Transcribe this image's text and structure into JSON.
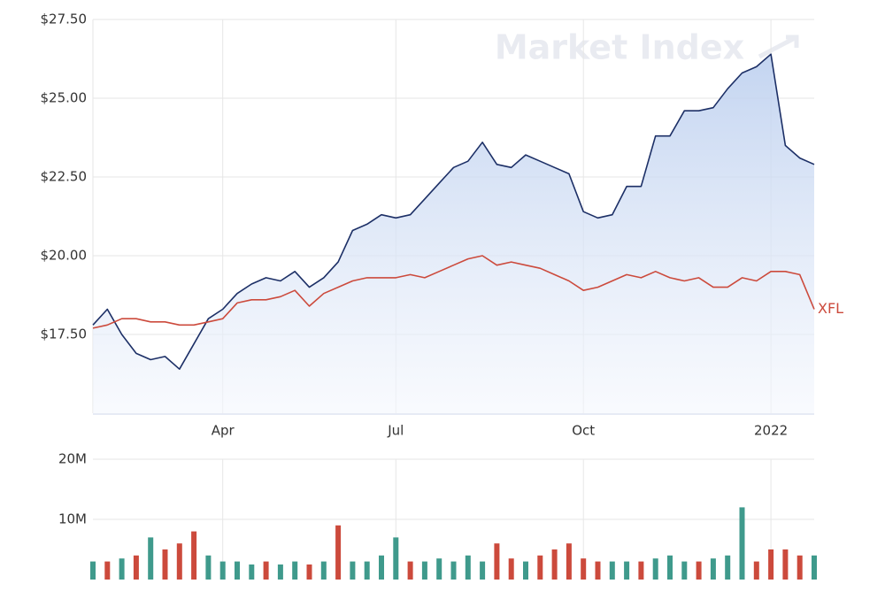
{
  "chart_data": [
    {
      "type": "line",
      "watermark": "Market Index",
      "categories": [
        null,
        null,
        null,
        null,
        null,
        null,
        null,
        null,
        null,
        "Apr",
        null,
        null,
        null,
        null,
        null,
        null,
        null,
        null,
        null,
        null,
        null,
        "Jul",
        null,
        null,
        null,
        null,
        null,
        null,
        null,
        null,
        null,
        null,
        null,
        null,
        "Oct",
        null,
        null,
        null,
        null,
        null,
        null,
        null,
        null,
        null,
        null,
        null,
        null,
        "2022",
        null,
        null,
        null
      ],
      "ylim": [
        15,
        27.5
      ],
      "yticks": [
        {
          "value": 17.5,
          "label": "$17.50"
        },
        {
          "value": 20,
          "label": "$20.00"
        },
        {
          "value": 22.5,
          "label": "$22.50"
        },
        {
          "value": 25,
          "label": "$25.00"
        },
        {
          "value": 27.5,
          "label": "$27.50"
        }
      ],
      "grid": true,
      "series": [
        {
          "color": "#1c2f66",
          "area": true,
          "values": [
            17.8,
            18.3,
            17.5,
            16.9,
            16.7,
            16.8,
            16.4,
            17.2,
            18.0,
            18.3,
            18.8,
            19.1,
            19.3,
            19.2,
            19.5,
            19.0,
            19.3,
            19.8,
            20.8,
            21.0,
            21.3,
            21.2,
            21.3,
            21.8,
            22.3,
            22.8,
            23.0,
            23.6,
            22.9,
            22.8,
            23.2,
            23.0,
            22.8,
            22.6,
            21.4,
            21.2,
            21.3,
            22.2,
            22.2,
            23.8,
            23.8,
            24.6,
            24.6,
            24.7,
            25.3,
            25.8,
            26.0,
            26.4,
            23.5,
            23.1,
            22.9
          ]
        },
        {
          "name": "XFL",
          "color": "#cc4a3c",
          "values": [
            17.7,
            17.8,
            18.0,
            18.0,
            17.9,
            17.9,
            17.8,
            17.8,
            17.9,
            18.0,
            18.5,
            18.6,
            18.6,
            18.7,
            18.9,
            18.4,
            18.8,
            19.0,
            19.2,
            19.3,
            19.3,
            19.3,
            19.4,
            19.3,
            19.5,
            19.7,
            19.9,
            20.0,
            19.7,
            19.8,
            19.7,
            19.6,
            19.4,
            19.2,
            18.9,
            19.0,
            19.2,
            19.4,
            19.3,
            19.5,
            19.3,
            19.2,
            19.3,
            19.0,
            19.0,
            19.3,
            19.2,
            19.5,
            19.5,
            19.4,
            18.3
          ]
        }
      ]
    },
    {
      "type": "bar",
      "ylim": [
        0,
        20000000
      ],
      "yticks": [
        {
          "value": 10000000,
          "label": "10M"
        },
        {
          "value": 20000000,
          "label": "20M"
        }
      ],
      "values": [
        3000000,
        3000000,
        3500000,
        4000000,
        7000000,
        5000000,
        6000000,
        8000000,
        4000000,
        3000000,
        3000000,
        2500000,
        3000000,
        2500000,
        3000000,
        2500000,
        3000000,
        9000000,
        3000000,
        3000000,
        4000000,
        7000000,
        3000000,
        3000000,
        3500000,
        3000000,
        4000000,
        3000000,
        6000000,
        3500000,
        3000000,
        4000000,
        5000000,
        6000000,
        3500000,
        3000000,
        3000000,
        3000000,
        3000000,
        3500000,
        4000000,
        3000000,
        3000000,
        3500000,
        4000000,
        12000000,
        3000000,
        5000000,
        5000000,
        4000000,
        4000000
      ],
      "colors": [
        "#3f9a8c",
        "#cc4a3c",
        "#3f9a8c",
        "#cc4a3c",
        "#3f9a8c",
        "#cc4a3c",
        "#cc4a3c",
        "#cc4a3c",
        "#3f9a8c",
        "#3f9a8c",
        "#3f9a8c",
        "#3f9a8c",
        "#cc4a3c",
        "#3f9a8c",
        "#3f9a8c",
        "#cc4a3c",
        "#3f9a8c",
        "#cc4a3c",
        "#3f9a8c",
        "#3f9a8c",
        "#3f9a8c",
        "#3f9a8c",
        "#cc4a3c",
        "#3f9a8c",
        "#3f9a8c",
        "#3f9a8c",
        "#3f9a8c",
        "#3f9a8c",
        "#cc4a3c",
        "#cc4a3c",
        "#3f9a8c",
        "#cc4a3c",
        "#cc4a3c",
        "#cc4a3c",
        "#cc4a3c",
        "#cc4a3c",
        "#3f9a8c",
        "#3f9a8c",
        "#cc4a3c",
        "#3f9a8c",
        "#3f9a8c",
        "#3f9a8c",
        "#cc4a3c",
        "#3f9a8c",
        "#3f9a8c",
        "#3f9a8c",
        "#cc4a3c",
        "#cc4a3c",
        "#cc4a3c",
        "#cc4a3c",
        "#3f9a8c"
      ]
    }
  ]
}
